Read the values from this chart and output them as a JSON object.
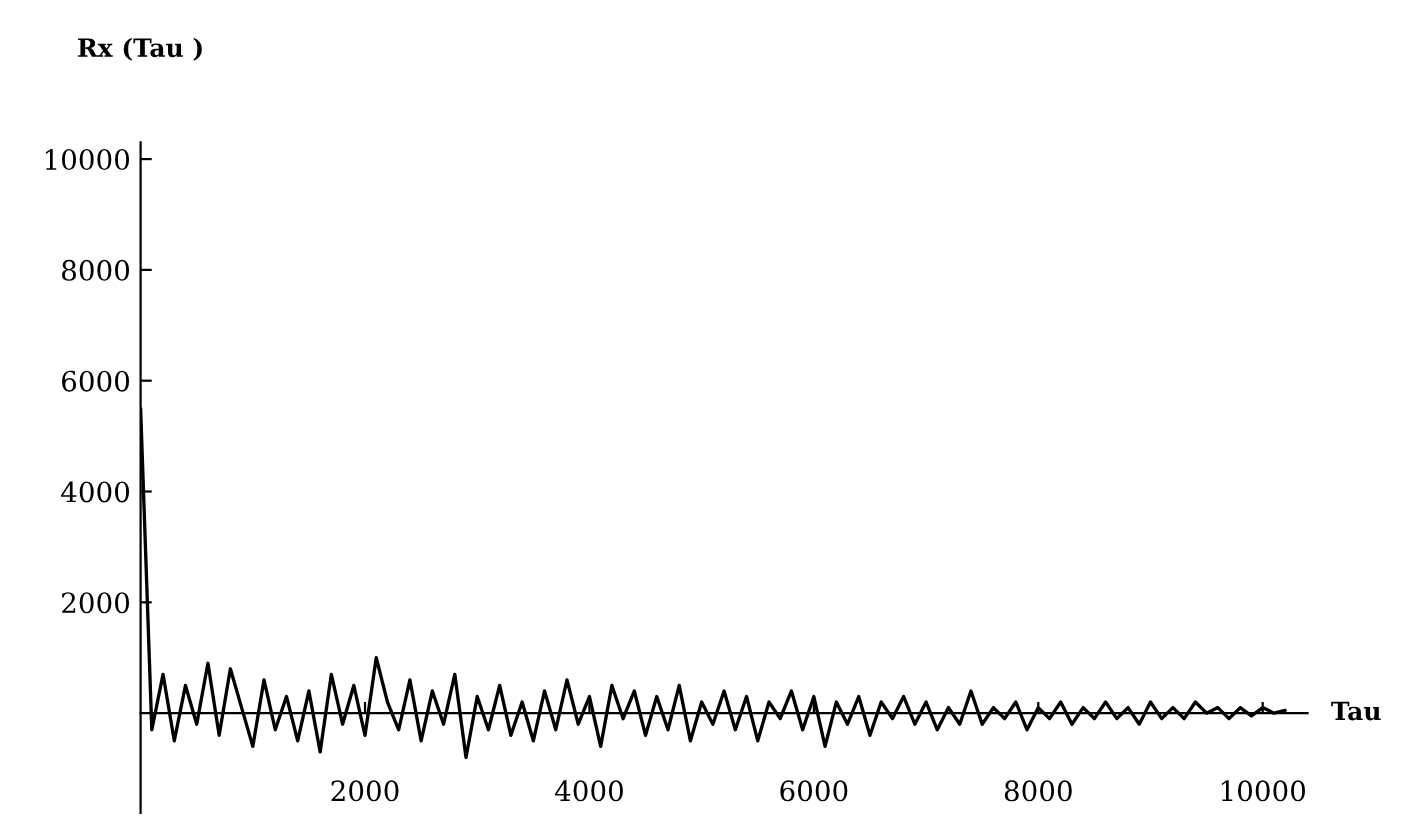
{
  "chart_data": {
    "type": "line",
    "xlabel": "Tau",
    "ylabel": "Rx (Tau )",
    "color": "#000000",
    "x": [
      0,
      100,
      200,
      300,
      400,
      500,
      600,
      700,
      800,
      900,
      1000,
      1100,
      1200,
      1300,
      1400,
      1500,
      1600,
      1700,
      1800,
      1900,
      2000,
      2100,
      2200,
      2300,
      2400,
      2500,
      2600,
      2700,
      2800,
      2900,
      3000,
      3100,
      3200,
      3300,
      3400,
      3500,
      3600,
      3700,
      3800,
      3900,
      4000,
      4100,
      4200,
      4300,
      4400,
      4500,
      4600,
      4700,
      4800,
      4900,
      5000,
      5100,
      5200,
      5300,
      5400,
      5500,
      5600,
      5700,
      5800,
      5900,
      6000,
      6100,
      6200,
      6300,
      6400,
      6500,
      6600,
      6700,
      6800,
      6900,
      7000,
      7100,
      7200,
      7300,
      7400,
      7500,
      7600,
      7700,
      7800,
      7900,
      8000,
      8100,
      8200,
      8300,
      8400,
      8500,
      8600,
      8700,
      8800,
      8900,
      9000,
      9100,
      9200,
      9300,
      9400,
      9500,
      9600,
      9700,
      9800,
      9900,
      10000,
      10100,
      10200
    ],
    "values": [
      5500,
      -300,
      700,
      -500,
      500,
      -200,
      900,
      -400,
      800,
      100,
      -600,
      600,
      -300,
      300,
      -500,
      400,
      -700,
      700,
      -200,
      500,
      -400,
      1000,
      200,
      -300,
      600,
      -500,
      400,
      -200,
      700,
      -800,
      300,
      -300,
      500,
      -400,
      200,
      -500,
      400,
      -300,
      600,
      -200,
      300,
      -600,
      500,
      -100,
      400,
      -400,
      300,
      -300,
      500,
      -500,
      200,
      -200,
      400,
      -300,
      300,
      -500,
      200,
      -100,
      400,
      -300,
      300,
      -600,
      200,
      -200,
      300,
      -400,
      200,
      -100,
      300,
      -200,
      200,
      -300,
      100,
      -200,
      400,
      -200,
      100,
      -100,
      200,
      -300,
      100,
      -100,
      200,
      -200,
      100,
      -100,
      200,
      -100,
      100,
      -200,
      200,
      -100,
      100,
      -100,
      200,
      0,
      100,
      -100,
      100,
      -50,
      100,
      0,
      50
    ],
    "xlim": [
      0,
      10400
    ],
    "ylim": [
      -1800,
      10300
    ],
    "xticks": [
      2000,
      4000,
      6000,
      8000,
      10000
    ],
    "yticks": [
      2000,
      4000,
      6000,
      8000,
      10000
    ],
    "grid": false,
    "marker": "none",
    "line_style": "solid"
  }
}
